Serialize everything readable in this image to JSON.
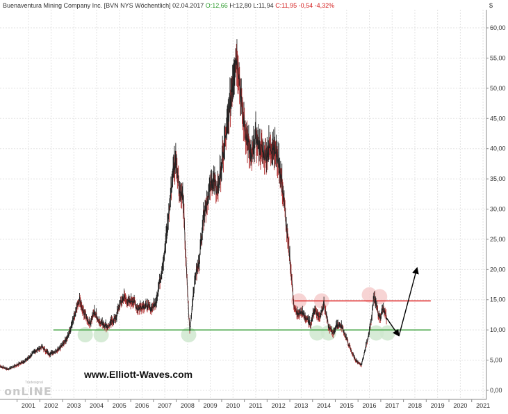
{
  "header": {
    "name": "Buenaventura Mining Company Inc.",
    "ticker": "[BVN NYS  Wöchentlich]",
    "date": "02.04.2017",
    "open": "O:12,66",
    "high": "H:12,80",
    "low": "L:11,94",
    "close": "C:11,95",
    "change": "-0,54",
    "change_pct": "-4,32%"
  },
  "watermark": "www.Elliott-Waves.com",
  "logo": {
    "text": "onLINE",
    "small": "Tradesignal"
  },
  "colors": {
    "price": "#222222",
    "down_candle": "#b23030",
    "support": "#2e9a2e",
    "resistance": "#e03030",
    "support_marker": "#cfe8cf",
    "resistance_marker": "#f6cccc",
    "grid": "#e2e2e2",
    "arrow": "#000000"
  },
  "chart_data": {
    "type": "line",
    "title": "",
    "xlabel": "",
    "ylabel": "$",
    "unit": "$",
    "xlim": [
      2000.25,
      2021.65
    ],
    "ylim": [
      -1.5,
      63
    ],
    "grid": true,
    "x_ticks": [
      "2001",
      "2002",
      "2003",
      "2004",
      "2005",
      "2006",
      "2007",
      "2008",
      "2009",
      "2010",
      "2011",
      "2012",
      "2013",
      "2014",
      "2015",
      "2016",
      "2017",
      "2018",
      "2019",
      "2020",
      "2021"
    ],
    "y_ticks": [
      "0,00",
      "5,00",
      "10,00",
      "15,00",
      "20,00",
      "25,00",
      "30,00",
      "35,00",
      "40,00",
      "45,00",
      "50,00",
      "55,00",
      "60,00"
    ],
    "y_tick_values": [
      0,
      5,
      10,
      15,
      20,
      25,
      30,
      35,
      40,
      45,
      50,
      55,
      60
    ],
    "series": [
      {
        "x": [
          2000.25,
          2000.6,
          2001.0,
          2001.4,
          2001.8,
          2002.1,
          2002.4,
          2002.7,
          2003.0,
          2003.3,
          2003.55,
          2003.75,
          2003.85,
          2004.0,
          2004.2,
          2004.4,
          2004.6,
          2004.8,
          2005.0,
          2005.2,
          2005.35,
          2005.5,
          2005.7,
          2005.9,
          2006.1,
          2006.3,
          2006.5,
          2006.7,
          2006.9,
          2007.1,
          2007.3,
          2007.5,
          2007.7,
          2007.85,
          2008.0,
          2008.15,
          2008.3,
          2008.45,
          2008.6,
          2008.75,
          2008.85,
          2009.0,
          2009.2,
          2009.4,
          2009.6,
          2009.8,
          2010.0,
          2010.1,
          2010.3,
          2010.5,
          2010.65,
          2010.75,
          2010.85,
          2010.95,
          2011.1,
          2011.3,
          2011.5,
          2011.7,
          2011.9,
          2012.1,
          2012.3,
          2012.5,
          2012.7,
          2012.9,
          2013.0,
          2013.1,
          2013.2,
          2013.35,
          2013.5,
          2013.7,
          2013.9,
          2014.1,
          2014.3,
          2014.5,
          2014.7,
          2014.9,
          2015.1,
          2015.3,
          2015.5,
          2015.7,
          2015.9,
          2016.0,
          2016.15,
          2016.3,
          2016.45,
          2016.6,
          2016.7,
          2016.8,
          2016.95,
          2017.1,
          2017.25
        ],
        "y": [
          4.0,
          3.5,
          4.2,
          5.0,
          6.5,
          7.2,
          6.0,
          6.5,
          7.5,
          9.5,
          12.5,
          15.0,
          13.5,
          12.5,
          11.0,
          13.0,
          11.5,
          11.0,
          10.5,
          11.5,
          12.0,
          14.0,
          15.5,
          14.5,
          15.0,
          13.5,
          14.0,
          14.0,
          13.5,
          14.5,
          18.5,
          23.0,
          30.0,
          36.0,
          38.5,
          33.0,
          32.0,
          20.0,
          9.5,
          16.0,
          19.0,
          21.0,
          29.0,
          32.0,
          35.0,
          33.0,
          37.0,
          40.0,
          45.0,
          52.0,
          55.5,
          53.0,
          48.0,
          45.0,
          42.0,
          38.0,
          42.0,
          40.0,
          39.0,
          40.0,
          40.5,
          38.0,
          33.0,
          25.0,
          22.0,
          17.5,
          13.5,
          12.5,
          13.0,
          12.0,
          11.0,
          13.5,
          12.0,
          14.5,
          10.5,
          9.5,
          11.0,
          10.5,
          8.5,
          6.5,
          5.0,
          4.5,
          4.2,
          6.5,
          9.0,
          12.0,
          15.5,
          14.0,
          12.0,
          13.5,
          12.0
        ]
      }
    ],
    "support_line": {
      "value": 10.0,
      "x_start": 2002.6,
      "x_end": 2019.2
    },
    "resistance_line": {
      "value": 14.8,
      "x_start": 2013.2,
      "x_end": 2019.2
    },
    "support_markers": [
      [
        2004.0,
        9.2
      ],
      [
        2004.7,
        9.2
      ],
      [
        2008.55,
        9.2
      ],
      [
        2014.2,
        9.5
      ],
      [
        2014.7,
        9.5
      ],
      [
        2016.8,
        9.5
      ],
      [
        2017.3,
        9.5
      ]
    ],
    "resistance_markers": [
      [
        2013.4,
        14.8
      ],
      [
        2014.4,
        14.8
      ],
      [
        2016.5,
        15.8
      ],
      [
        2016.95,
        15.5
      ]
    ],
    "forecast_path": [
      [
        2017.25,
        12.0
      ],
      [
        2017.8,
        9.0
      ],
      [
        2018.6,
        20.3
      ]
    ]
  }
}
